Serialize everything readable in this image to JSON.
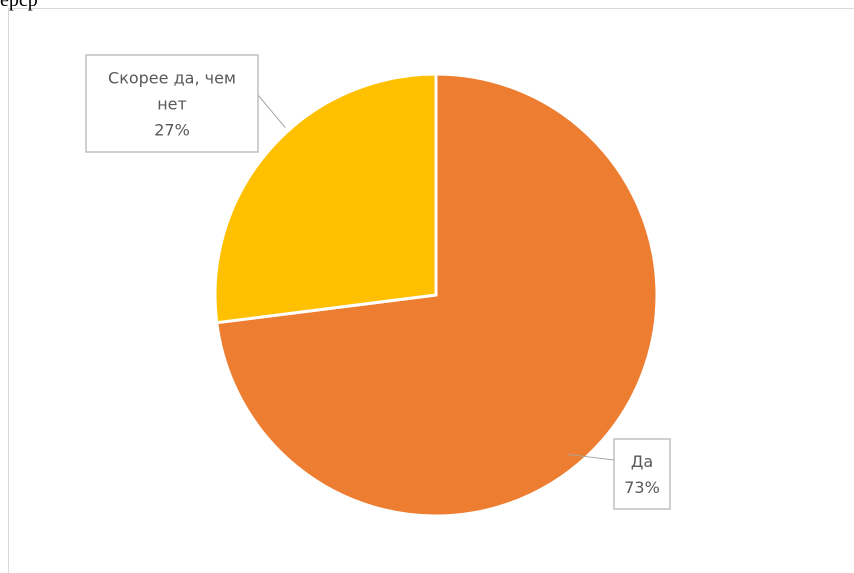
{
  "page_fragment": "ерср",
  "chart_data": {
    "type": "pie",
    "title": "",
    "slices": [
      {
        "label_lines": [
          "Да"
        ],
        "value": 73,
        "value_text": "73%",
        "color": "#ED7D31"
      },
      {
        "label_lines": [
          "Скорее да, чем",
          "нет"
        ],
        "value": 27,
        "value_text": "27%",
        "color": "#FFC000"
      }
    ],
    "start_angle_deg": 0,
    "direction": "clockwise",
    "legend": "none",
    "data_labels": "callout"
  }
}
